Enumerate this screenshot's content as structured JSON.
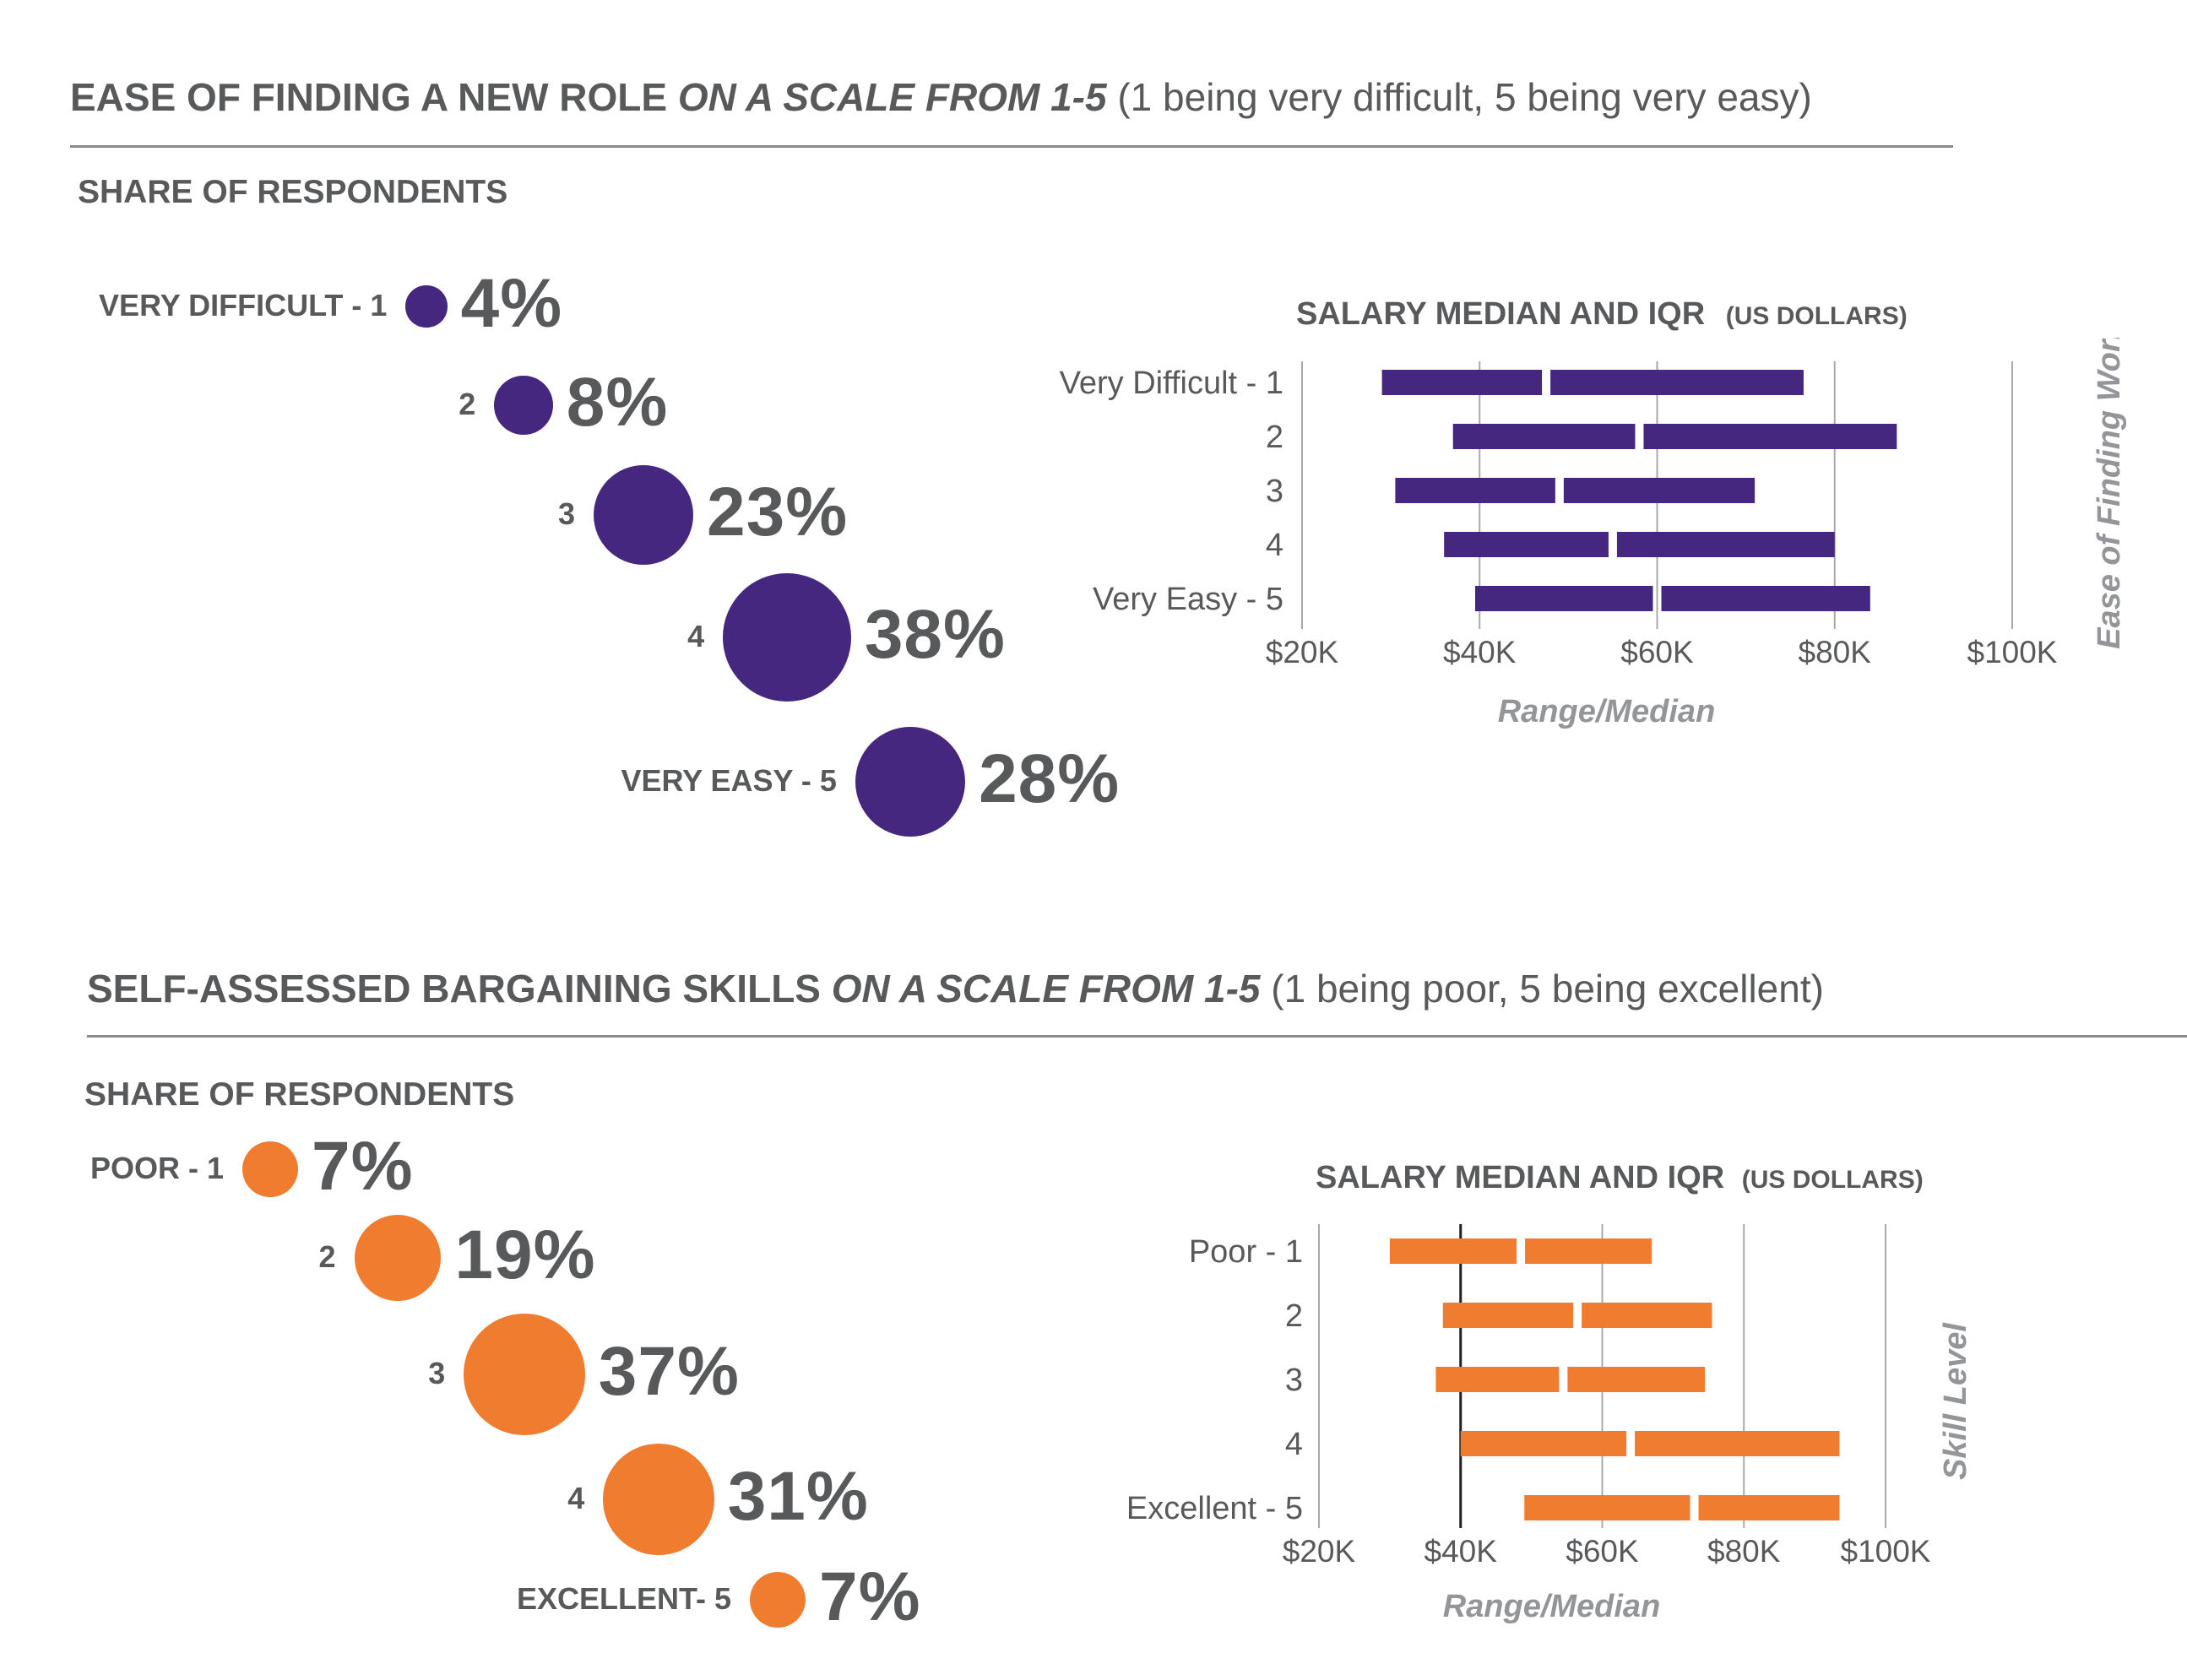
{
  "section1": {
    "title_bold": "EASE OF FINDING A NEW ROLE",
    "title_italic": "ON A SCALE FROM 1-5",
    "title_note": "(1 being very difficult, 5 being very easy)",
    "share_label": "SHARE OF RESPONDENTS",
    "color": "#452780",
    "bubbles": [
      {
        "label": "VERY DIFFICULT - 1",
        "value": 4,
        "pct": "4%"
      },
      {
        "label": "2",
        "value": 8,
        "pct": "8%"
      },
      {
        "label": "3",
        "value": 23,
        "pct": "23%"
      },
      {
        "label": "4",
        "value": 38,
        "pct": "38%"
      },
      {
        "label": "VERY EASY - 5",
        "value": 28,
        "pct": "28%"
      }
    ],
    "chart_title": "SALARY MEDIAN AND IQR",
    "chart_title_unit": "(US DOLLARS)",
    "xlabel": "Range/Median",
    "ylabel": "Ease of Finding Work",
    "categories": [
      "Very Difficult - 1",
      "2",
      "3",
      "4",
      "Very Easy - 5"
    ],
    "ticks": [
      "$20K",
      "$40K",
      "$60K",
      "$80K",
      "$100K"
    ]
  },
  "section2": {
    "title_bold": "SELF-ASSESSED BARGAINING SKILLS",
    "title_italic": "ON A SCALE FROM 1-5",
    "title_note": "(1 being poor, 5 being excellent)",
    "share_label": "SHARE OF RESPONDENTS",
    "color": "#f07c30",
    "bubbles": [
      {
        "label": "POOR - 1",
        "value": 7,
        "pct": "7%"
      },
      {
        "label": "2",
        "value": 19,
        "pct": "19%"
      },
      {
        "label": "3",
        "value": 37,
        "pct": "37%"
      },
      {
        "label": "4",
        "value": 31,
        "pct": "31%"
      },
      {
        "label": "EXCELLENT- 5",
        "value": 7,
        "pct": "7%"
      }
    ],
    "chart_title": "SALARY MEDIAN AND IQR",
    "chart_title_unit": "(US DOLLARS)",
    "xlabel": "Range/Median",
    "ylabel": "Skill Level",
    "categories": [
      "Poor - 1",
      "2",
      "3",
      "4",
      "Excellent - 5"
    ],
    "ticks": [
      "$20K",
      "$40K",
      "$60K",
      "$80K",
      "$100K"
    ]
  },
  "chart_data": [
    {
      "type": "bar",
      "title": "SALARY MEDIAN AND IQR (US DOLLARS)",
      "xlabel": "Range/Median",
      "ylabel": "Ease of Finding Work",
      "xlim": [
        20000,
        100000
      ],
      "categories": [
        "Very Difficult - 1",
        "2",
        "3",
        "4",
        "Very Easy - 5"
      ],
      "series": [
        {
          "q1": 29000,
          "median": 47500,
          "q3": 76500
        },
        {
          "q1": 37000,
          "median": 58000,
          "q3": 87000
        },
        {
          "q1": 30500,
          "median": 49000,
          "q3": 71000
        },
        {
          "q1": 36000,
          "median": 55000,
          "q3": 80000
        },
        {
          "q1": 39500,
          "median": 60000,
          "q3": 84000
        }
      ]
    },
    {
      "type": "bar",
      "title": "SALARY MEDIAN AND IQR (US DOLLARS)",
      "xlabel": "Range/Median",
      "ylabel": "Skill Level",
      "xlim": [
        20000,
        100000
      ],
      "categories": [
        "Poor - 1",
        "2",
        "3",
        "4",
        "Excellent - 5"
      ],
      "series": [
        {
          "q1": 30000,
          "median": 48500,
          "q3": 67000
        },
        {
          "q1": 37500,
          "median": 56500,
          "q3": 75500
        },
        {
          "q1": 36500,
          "median": 54500,
          "q3": 74500
        },
        {
          "q1": 40000,
          "median": 64000,
          "q3": 93500
        },
        {
          "q1": 49000,
          "median": 73000,
          "q3": 93500
        }
      ]
    }
  ]
}
